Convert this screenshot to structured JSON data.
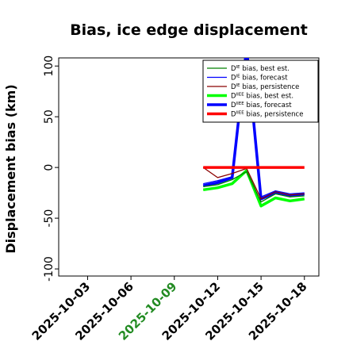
{
  "chart_data": {
    "type": "line",
    "title": "Bias, ice edge displacement",
    "xlabel": "",
    "ylabel": "Displacement bias (km)",
    "xlim": [
      "2025-10-01",
      "2025-10-19"
    ],
    "ylim": [
      -107,
      108
    ],
    "yticks": [
      100,
      50,
      0,
      -50,
      -100
    ],
    "xticks": [
      {
        "date": "2025-10-03",
        "label": "2025-10-03",
        "color": "#000000"
      },
      {
        "date": "2025-10-06",
        "label": "2025-10-06",
        "color": "#000000"
      },
      {
        "date": "2025-10-09",
        "label": "2025-10-09",
        "color": "#228B22"
      },
      {
        "date": "2025-10-12",
        "label": "2025-10-12",
        "color": "#000000"
      },
      {
        "date": "2025-10-15",
        "label": "2025-10-15",
        "color": "#000000"
      },
      {
        "date": "2025-10-18",
        "label": "2025-10-18",
        "color": "#000000"
      }
    ],
    "legend_position": "top-right",
    "grid": false,
    "x": [
      "2025-10-11",
      "2025-10-12",
      "2025-10-13",
      "2025-10-14",
      "2025-10-15",
      "2025-10-16",
      "2025-10-17",
      "2025-10-18"
    ],
    "series": [
      {
        "name": "D^IE bias, best est.",
        "sup": "IE",
        "label_pre": "D",
        "label_post": " bias, best est.",
        "color": "#008000",
        "width": 1.3,
        "values": [
          -19,
          -17,
          -12,
          -4,
          -34,
          -26,
          -29,
          -28
        ]
      },
      {
        "name": "D^IE bias, forecast",
        "sup": "IE",
        "label_pre": "D",
        "label_post": " bias, forecast",
        "color": "#0000ff",
        "width": 1.3,
        "values": [
          -16,
          -13,
          -9,
          120,
          -29,
          -23,
          -26,
          -25
        ]
      },
      {
        "name": "D^IE bias, persistence",
        "sup": "IE",
        "label_pre": "D",
        "label_post": " bias, persistence",
        "color": "#8B0000",
        "width": 1.3,
        "values": [
          0,
          -10,
          -6,
          -1,
          -31,
          -24,
          -27,
          -26
        ]
      },
      {
        "name": "D^IIEE bias, best est.",
        "sup": "IIEE",
        "label_pre": "D",
        "label_post": " bias, best est.",
        "color": "#00ff00",
        "width": 3.5,
        "values": [
          -22,
          -20,
          -16,
          -3,
          -38,
          -30,
          -33,
          -31
        ]
      },
      {
        "name": "D^IIEE bias, forecast",
        "sup": "IIEE",
        "label_pre": "D",
        "label_post": " bias, forecast",
        "color": "#0000ff",
        "width": 3.5,
        "values": [
          -18,
          -15,
          -10,
          118,
          -31,
          -25,
          -28,
          -26
        ]
      },
      {
        "name": "D^IIEE bias, persistence",
        "sup": "IIEE",
        "label_pre": "D",
        "label_post": " bias, persistence",
        "color": "#ff0000",
        "width": 3.5,
        "values": [
          0,
          0,
          0,
          0,
          0,
          0,
          0,
          0
        ]
      }
    ]
  }
}
